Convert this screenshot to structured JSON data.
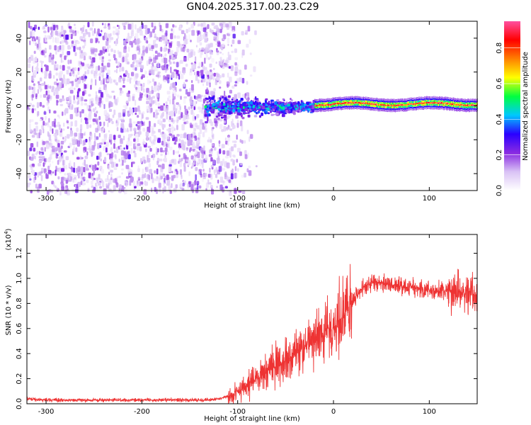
{
  "title": "GN04.2025.317.00.23.C29",
  "chart_data": [
    {
      "type": "heatmap",
      "xlabel": "Height of straight line (km)",
      "ylabel": "Frequency (Hz)",
      "xlim": [
        -320,
        150
      ],
      "ylim": [
        -50,
        50
      ],
      "xticks": [
        -300,
        -200,
        -100,
        0,
        100
      ],
      "yticks": [
        -40,
        -20,
        0,
        20,
        40
      ],
      "regions": [
        {
          "name": "broadband noise",
          "x_range": [
            -320,
            -90
          ],
          "y_range": [
            -50,
            50
          ],
          "amplitude_range": [
            0.05,
            0.25
          ]
        },
        {
          "name": "emerging signal",
          "x_range": [
            -135,
            -20
          ],
          "y_range": [
            -8,
            8
          ],
          "amplitude_range": [
            0.2,
            0.55
          ]
        },
        {
          "name": "coherent line",
          "x_range": [
            -20,
            150
          ],
          "y_center": 1.5,
          "amplitude_range": [
            0.7,
            1.0
          ]
        }
      ],
      "colorbar": {
        "label": "Normalized spectral amplitude",
        "range": [
          0.0,
          0.95
        ],
        "ticks": [
          "0.0",
          "0.2",
          "0.4",
          "0.6",
          "0.8"
        ],
        "colors": [
          "#ffffff",
          "#d9c2f5",
          "#8a2be2",
          "#2a00ff",
          "#00c8ff",
          "#00ff40",
          "#ffff00",
          "#ff8000",
          "#ff0000",
          "#ff4fa0"
        ]
      }
    },
    {
      "type": "line",
      "xlabel": "Height of straight line (km)",
      "ylabel": "SNR (10 * v/v)",
      "scale_note": "(x10",
      "scale_exp": "4",
      "xlim": [
        -320,
        150
      ],
      "ylim": [
        0.0,
        1.35
      ],
      "xticks": [
        -300,
        -200,
        -100,
        0,
        100
      ],
      "yticks": [
        "0.0",
        "0.2",
        "0.4",
        "0.6",
        "0.8",
        "1.0",
        "1.2"
      ],
      "color": "#ee3333",
      "x": [
        -320,
        -300,
        -250,
        -200,
        -150,
        -130,
        -120,
        -110,
        -100,
        -90,
        -80,
        -70,
        -60,
        -50,
        -40,
        -30,
        -20,
        -10,
        0,
        10,
        20,
        30,
        40,
        60,
        80,
        100,
        120,
        140,
        150
      ],
      "y": [
        0.04,
        0.03,
        0.03,
        0.03,
        0.03,
        0.03,
        0.04,
        0.06,
        0.1,
        0.15,
        0.2,
        0.26,
        0.3,
        0.35,
        0.4,
        0.45,
        0.5,
        0.55,
        0.62,
        0.7,
        0.82,
        0.92,
        0.97,
        0.95,
        0.93,
        0.91,
        0.9,
        0.88,
        0.86
      ]
    }
  ]
}
